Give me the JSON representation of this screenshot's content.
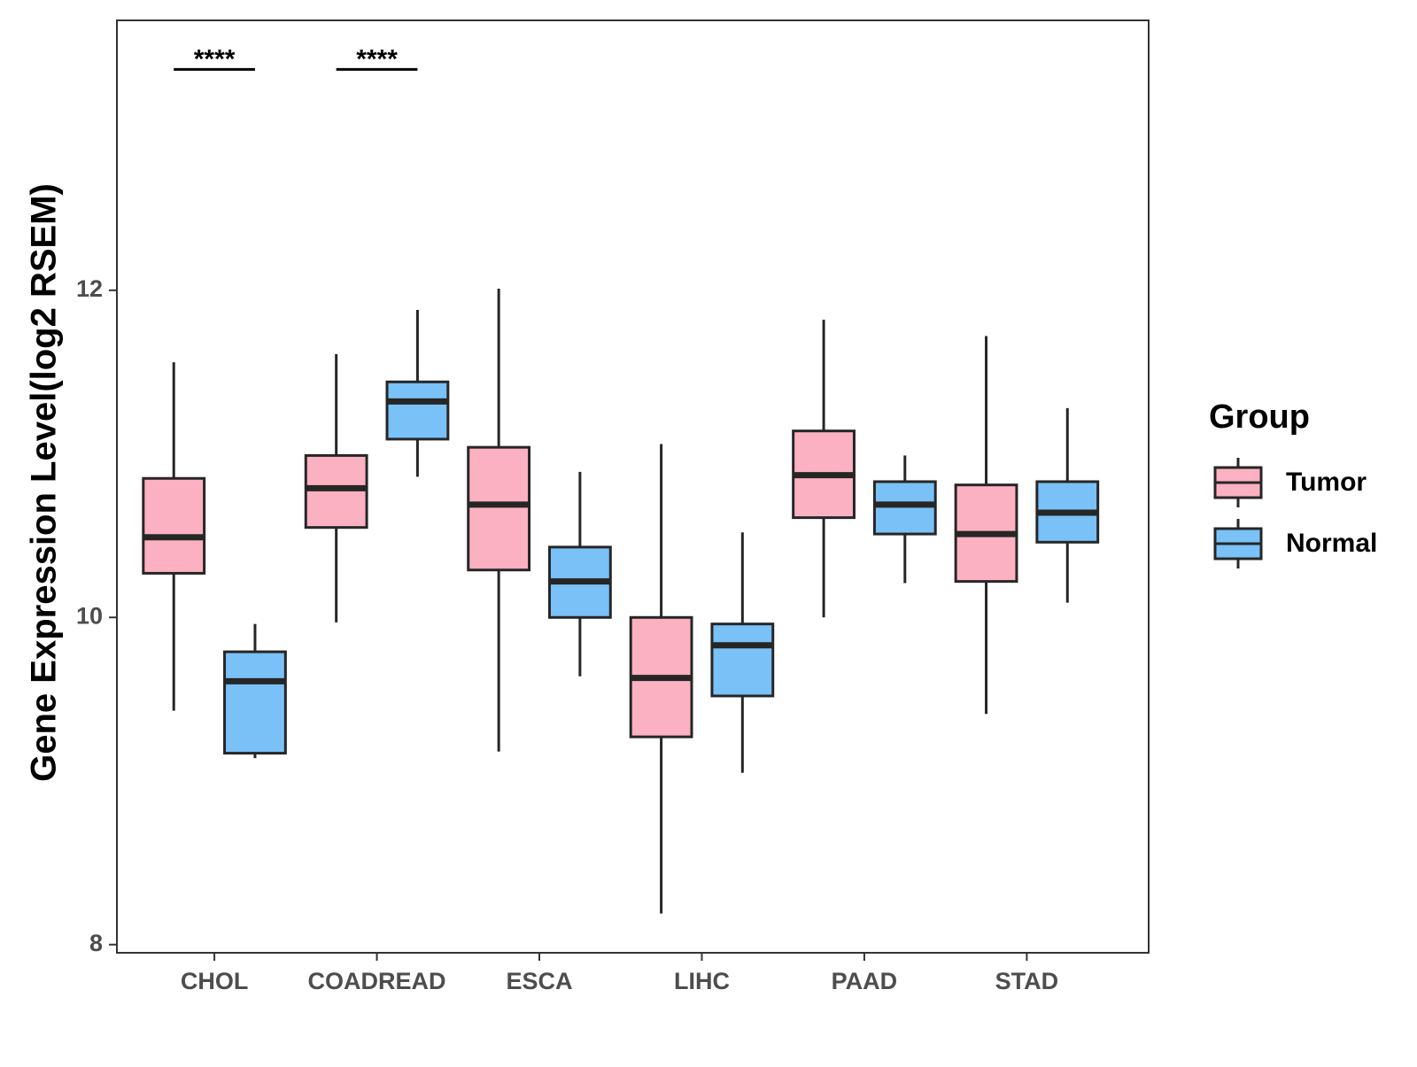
{
  "chart_data": {
    "type": "boxplot",
    "title": "",
    "xlabel": "",
    "ylabel": "Gene Expression Level(log2 RSEM)",
    "ylim": [
      7.95,
      13.65
    ],
    "yticks": [
      8,
      10,
      12
    ],
    "grid": false,
    "categories": [
      "CHOL",
      "COADREAD",
      "ESCA",
      "LIHC",
      "PAAD",
      "STAD"
    ],
    "legend": {
      "title": "Group",
      "position": "right",
      "entries": [
        {
          "name": "Tumor",
          "color": "#fbb1c1"
        },
        {
          "name": "Normal",
          "color": "#79c1f7"
        }
      ]
    },
    "series": [
      {
        "name": "Tumor",
        "color": "#fbb1c1",
        "boxes": [
          {
            "min": 9.43,
            "q1": 10.27,
            "median": 10.49,
            "q3": 10.85,
            "max": 11.56
          },
          {
            "min": 9.97,
            "q1": 10.55,
            "median": 10.79,
            "q3": 10.99,
            "max": 11.61
          },
          {
            "min": 9.18,
            "q1": 10.29,
            "median": 10.69,
            "q3": 11.04,
            "max": 12.01
          },
          {
            "min": 8.19,
            "q1": 9.27,
            "median": 9.63,
            "q3": 10.0,
            "max": 11.06
          },
          {
            "min": 10.0,
            "q1": 10.61,
            "median": 10.87,
            "q3": 11.14,
            "max": 11.82
          },
          {
            "min": 9.41,
            "q1": 10.22,
            "median": 10.51,
            "q3": 10.81,
            "max": 11.72
          }
        ]
      },
      {
        "name": "Normal",
        "color": "#79c1f7",
        "boxes": [
          {
            "min": 9.14,
            "q1": 9.17,
            "median": 9.61,
            "q3": 9.79,
            "max": 9.96
          },
          {
            "min": 10.86,
            "q1": 11.09,
            "median": 11.32,
            "q3": 11.44,
            "max": 11.88
          },
          {
            "min": 9.64,
            "q1": 10.0,
            "median": 10.22,
            "q3": 10.43,
            "max": 10.89
          },
          {
            "min": 9.05,
            "q1": 9.52,
            "median": 9.83,
            "q3": 9.96,
            "max": 10.52
          },
          {
            "min": 10.21,
            "q1": 10.51,
            "median": 10.69,
            "q3": 10.83,
            "max": 10.99
          },
          {
            "min": 10.09,
            "q1": 10.46,
            "median": 10.64,
            "q3": 10.83,
            "max": 11.28
          }
        ]
      }
    ],
    "annotations": [
      {
        "category": "CHOL",
        "label": "****",
        "y": 13.35
      },
      {
        "category": "COADREAD",
        "label": "****",
        "y": 13.35
      }
    ]
  }
}
